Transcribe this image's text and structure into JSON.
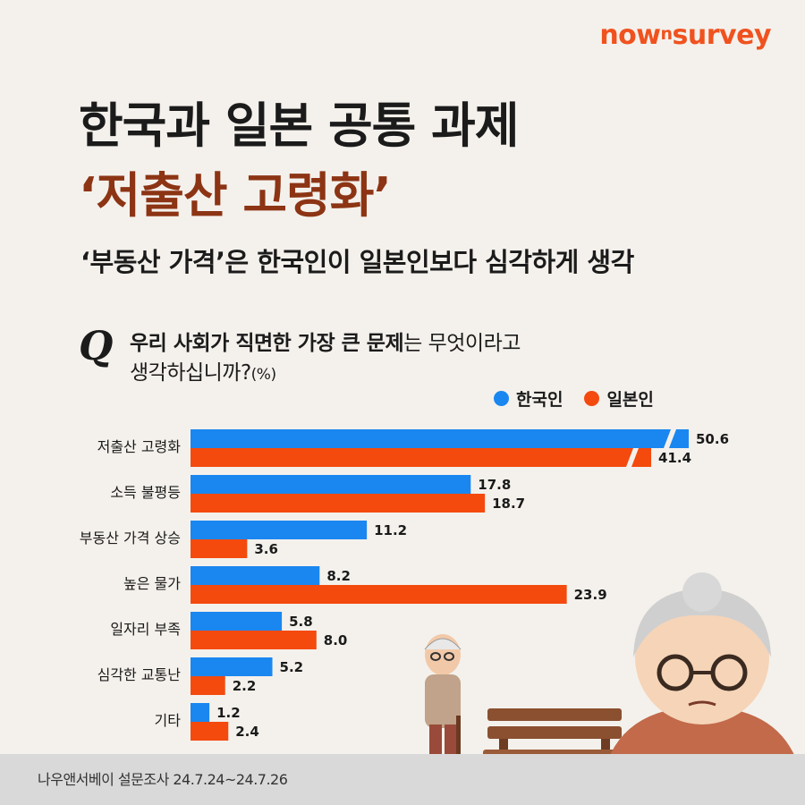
{
  "brand": {
    "logo_main": "now",
    "logo_sup": "n",
    "logo_tail": "survey"
  },
  "title_line1": "한국과 일본 공통 과제",
  "title_line2": "‘저출산 고령화’",
  "subtitle": "‘부동산 가격’은 한국인이 일본인보다 심각하게 생각",
  "question": {
    "mark": "Q",
    "bold": "우리 사회가 직면한 가장 큰 문제",
    "rest1": "는 무엇이라고",
    "line2": "생각하십니까?",
    "unit": "(%)"
  },
  "footer": "나우앤서베이 설문조사 24.7.24~24.7.26",
  "colors": {
    "korea": "#1a87f0",
    "japan": "#f44a0e",
    "title_accent": "#8c3414",
    "logo": "#f0521f"
  },
  "chart_data": {
    "type": "bar",
    "orientation": "horizontal",
    "categories": [
      "저출산 고령화",
      "소득 불평등",
      "부동산 가격 상승",
      "높은 물가",
      "일자리 부족",
      "심각한 교통난",
      "기타"
    ],
    "series": [
      {
        "name": "한국인",
        "values": [
          50.6,
          17.8,
          11.2,
          8.2,
          5.8,
          5.2,
          1.2
        ],
        "color": "#1a87f0"
      },
      {
        "name": "일본인",
        "values": [
          41.4,
          18.7,
          3.6,
          23.9,
          8.0,
          2.2,
          2.4
        ],
        "color": "#f44a0e"
      }
    ],
    "value_labels": [
      [
        "50.6",
        "17.8",
        "11.2",
        "8.2",
        "5.8",
        "5.2",
        "1.2"
      ],
      [
        "41.4",
        "18.7",
        "3.6",
        "23.9",
        "8.0",
        "2.2",
        "2.4"
      ]
    ],
    "axis_break": true,
    "legend_position": "top-right",
    "unit": "%"
  }
}
